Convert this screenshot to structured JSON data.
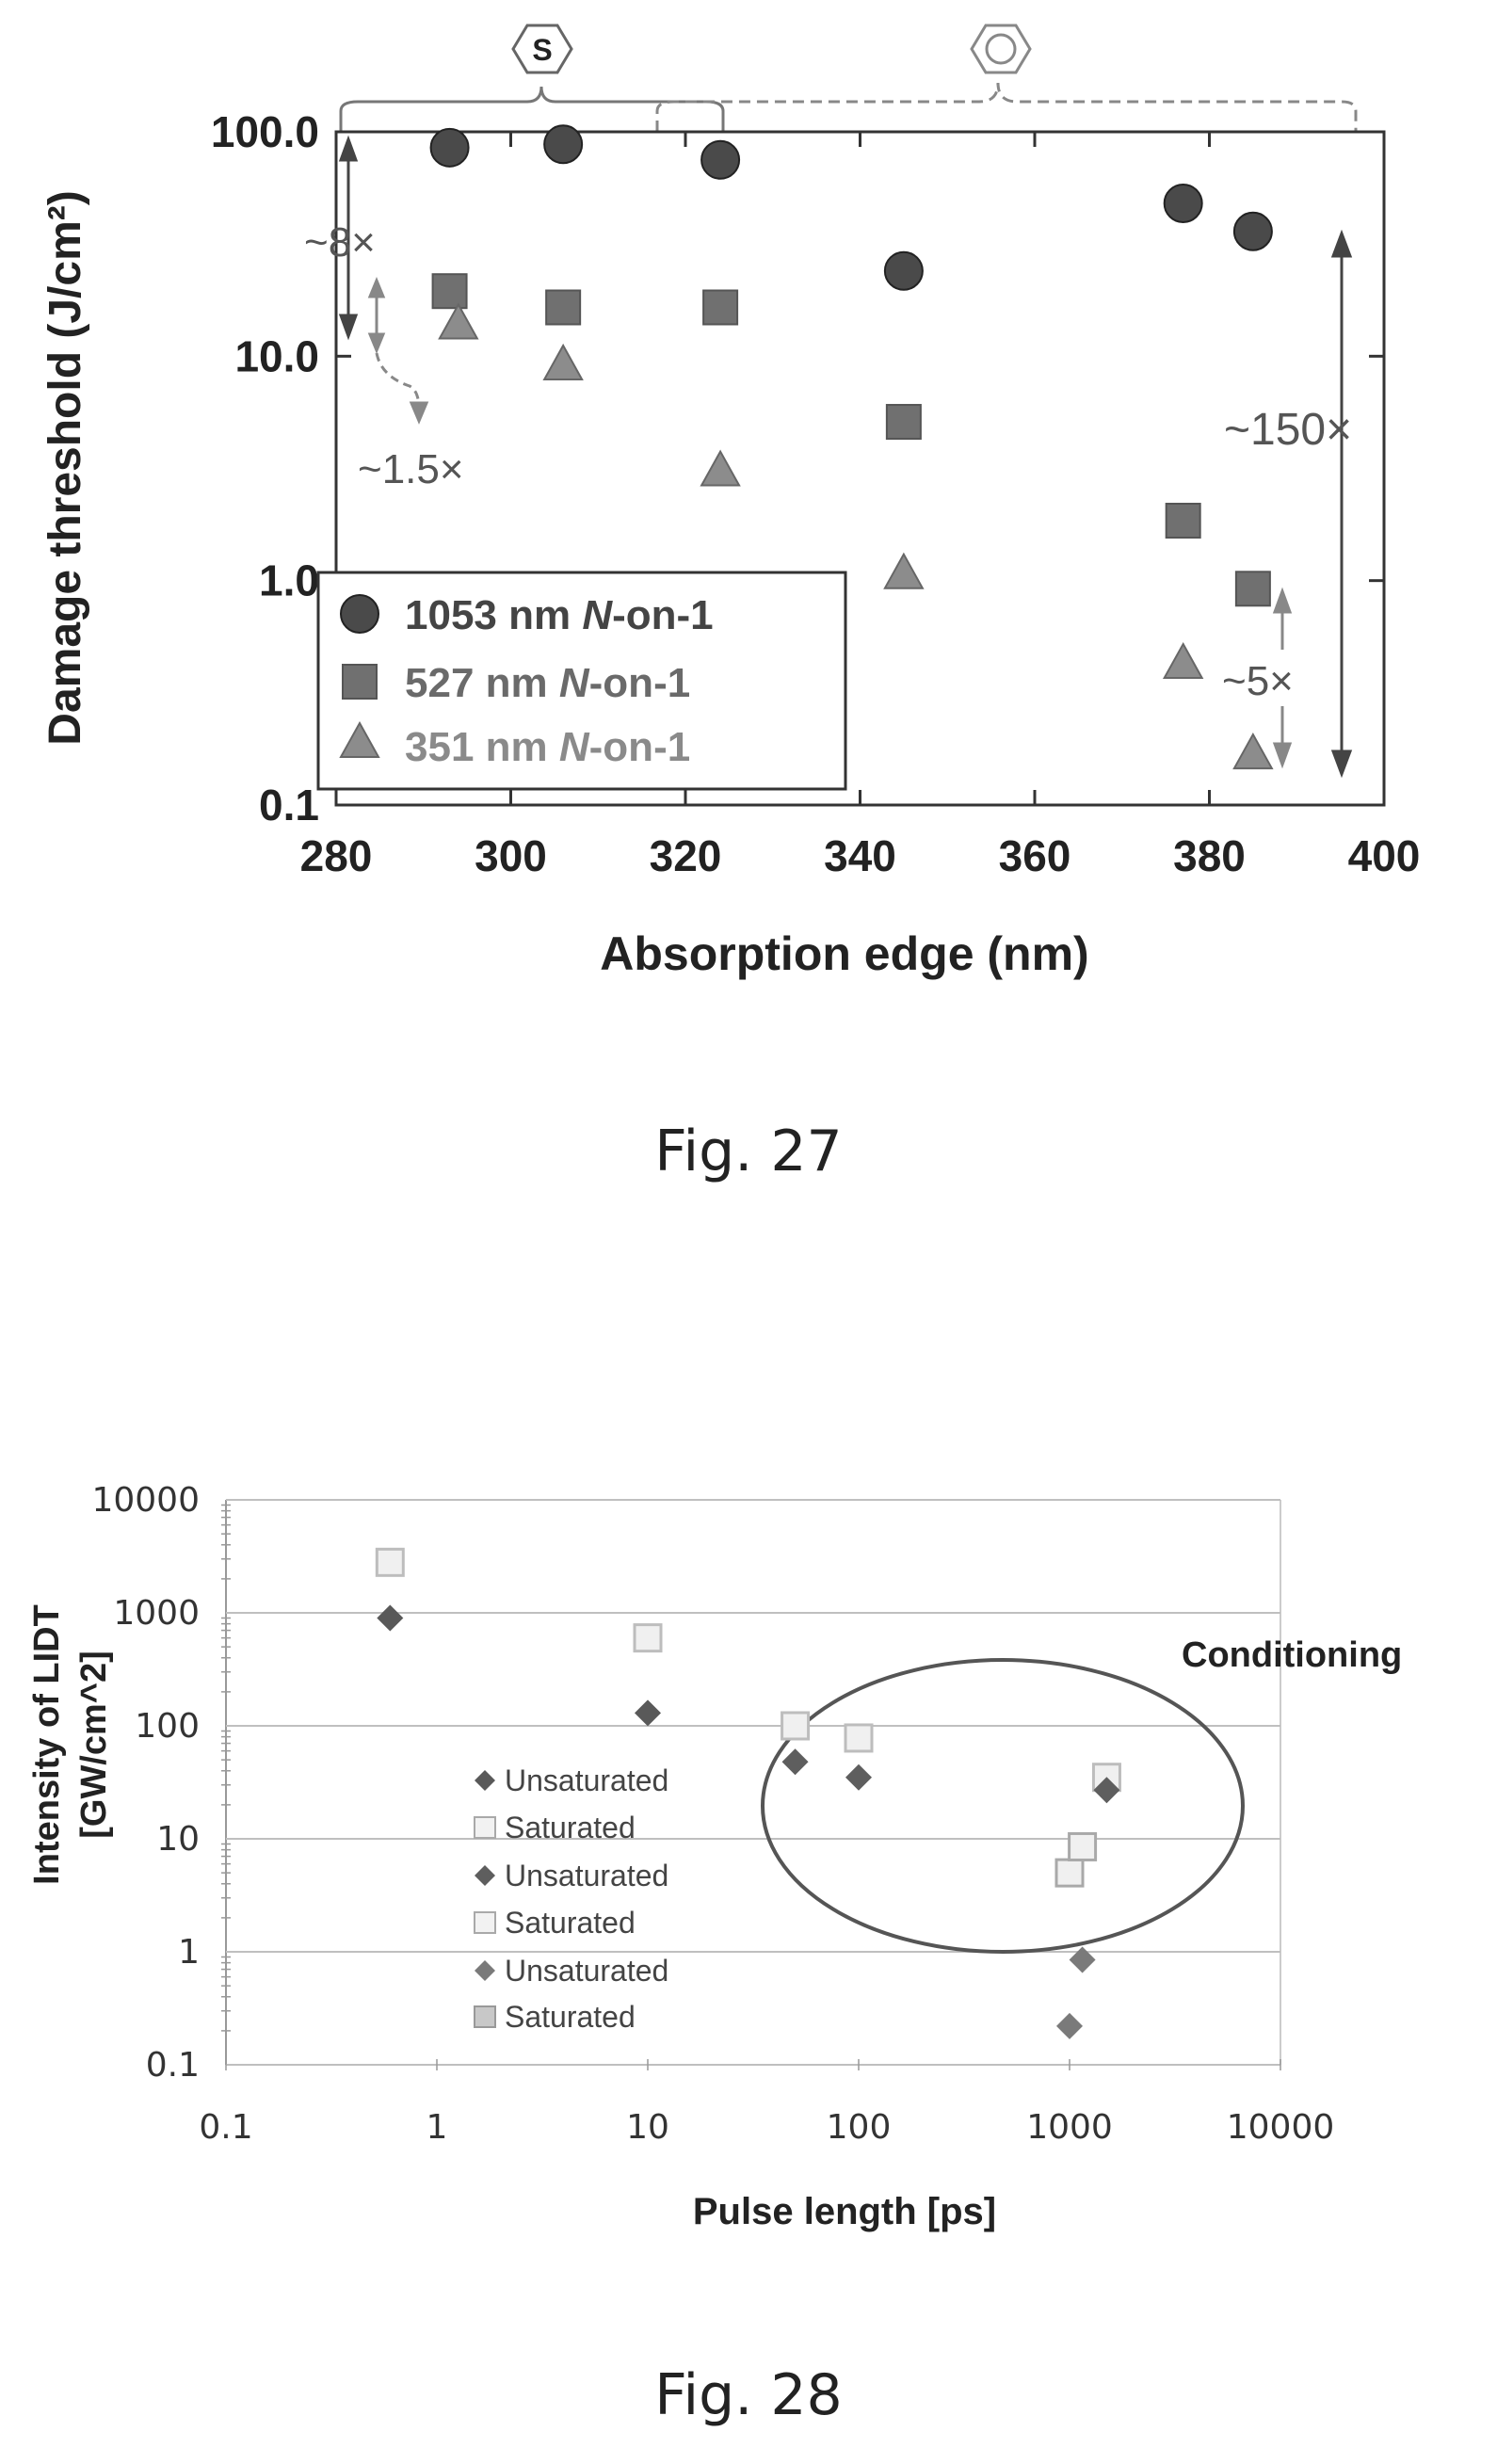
{
  "chart_data": [
    {
      "type": "scatter",
      "caption": "Fig. 27",
      "xlabel": "Absorption edge (nm)",
      "ylabel": "Damage threshold (J/cm²)",
      "xlim": [
        280,
        400
      ],
      "ylim": [
        0.1,
        100
      ],
      "yscale": "log",
      "x_ticks": [
        "280",
        "300",
        "320",
        "340",
        "360",
        "380",
        "400"
      ],
      "y_ticks": [
        "0.1",
        "1.0",
        "10.0",
        "100.0"
      ],
      "legend_position": "bottom-left",
      "series": [
        {
          "name_value": "1053",
          "name_unit": " nm ",
          "name_italic": "N",
          "name_suffix": "-on-1",
          "marker": "circle",
          "color": "#4a4a4a",
          "x": [
            293,
            306,
            324,
            345,
            377,
            385
          ],
          "y": [
            85,
            88,
            75,
            24,
            48,
            36
          ]
        },
        {
          "name_value": "527",
          "name_unit": " nm ",
          "name_italic": "N",
          "name_suffix": "-on-1",
          "marker": "square",
          "color": "#707070",
          "x": [
            293,
            306,
            324,
            345,
            377,
            385
          ],
          "y": [
            19.5,
            16.5,
            16.5,
            5.1,
            1.85,
            0.92
          ]
        },
        {
          "name_value": "351",
          "name_unit": " nm ",
          "name_italic": "N",
          "name_suffix": "-on-1",
          "marker": "triangle",
          "color": "#8c8c8c",
          "x": [
            294,
            306,
            324,
            345,
            377,
            385
          ],
          "y": [
            14,
            9.2,
            3.1,
            1.08,
            0.43,
            0.17
          ]
        }
      ],
      "annotations": {
        "a8x": "~8×",
        "a15x": "~1.5×",
        "a150x": "~150×",
        "a5x": "~5×",
        "bracket_left_symbol": "S"
      }
    },
    {
      "type": "scatter",
      "caption": "Fig. 28",
      "xlabel": "Pulse length [ps]",
      "ylabel_line1": "Intensity of LIDT",
      "ylabel_line2": "[GW/cm^2]",
      "xlim": [
        0.1,
        10000
      ],
      "ylim": [
        0.1,
        10000
      ],
      "xscale": "log",
      "yscale": "log",
      "x_ticks": [
        "0.1",
        "1",
        "10",
        "100",
        "1000",
        "10000"
      ],
      "y_ticks": [
        "0.1",
        "1",
        "10",
        "100",
        "1000",
        "10000"
      ],
      "grid": "horizontal",
      "region_label": "Conditioning",
      "legend_position": "left-middle",
      "legend": [
        "Unsaturated",
        "Saturated",
        "Unsaturated",
        "Saturated",
        "Unsaturated",
        "Saturated"
      ],
      "series": [
        {
          "name": "Unsaturated",
          "marker": "diamond",
          "color": "#595959",
          "x": [
            0.6,
            10
          ],
          "y": [
            900,
            130
          ]
        },
        {
          "name": "Saturated",
          "marker": "square-open",
          "color": "#bdbdbd",
          "x": [
            0.6,
            10
          ],
          "y": [
            2800,
            600
          ]
        },
        {
          "name": "Unsaturated",
          "marker": "diamond",
          "color": "#5e5e5e",
          "x": [
            50,
            100,
            1500
          ],
          "y": [
            48,
            35,
            27
          ]
        },
        {
          "name": "Saturated",
          "marker": "square-open",
          "color": "#bdbdbd",
          "x": [
            50,
            100,
            1500
          ],
          "y": [
            100,
            78,
            35
          ]
        },
        {
          "name": "Unsaturated",
          "marker": "diamond",
          "color": "#7a7a7a",
          "x": [
            1000,
            1150
          ],
          "y": [
            0.22,
            0.85
          ]
        },
        {
          "name": "Saturated",
          "marker": "square-open",
          "color": "#a9a9a9",
          "x": [
            1000,
            1150
          ],
          "y": [
            5,
            8.5
          ]
        }
      ]
    }
  ]
}
